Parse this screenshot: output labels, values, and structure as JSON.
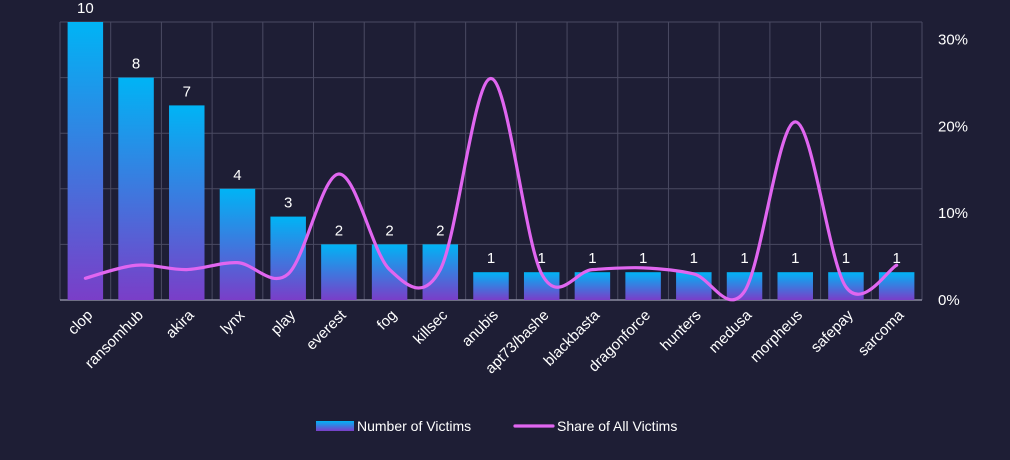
{
  "chart_data": {
    "type": "bar",
    "categories": [
      "clop",
      "ransomhub",
      "akira",
      "lynx",
      "play",
      "everest",
      "fog",
      "killsec",
      "anubis",
      "apt73/bashe",
      "blackbasta",
      "dragonforce",
      "hunters",
      "medusa",
      "morpheus",
      "safepay",
      "sarcoma"
    ],
    "series": [
      {
        "name": "Number of Victims",
        "type": "bar",
        "axis": "left",
        "values": [
          10,
          8,
          7,
          4,
          3,
          2,
          2,
          2,
          1,
          1,
          1,
          1,
          1,
          1,
          1,
          1,
          1
        ],
        "color_top": "#00b4f5",
        "color_bottom": "#7a3ec8"
      },
      {
        "name": "Share of All Victims",
        "type": "line",
        "axis": "right",
        "smooth": true,
        "values": [
          2.5,
          4,
          3.5,
          4.3,
          3,
          14.5,
          3.5,
          3.5,
          25.5,
          3,
          3.5,
          3.7,
          3,
          1,
          20.5,
          1.5,
          4
        ],
        "color": "#e066f0"
      }
    ],
    "left_axis": {
      "ylim": [
        0,
        10
      ],
      "grid_step": 2,
      "tick_labels_visible": false
    },
    "right_axis": {
      "ylim": [
        0,
        32
      ],
      "ticks": [
        0,
        10,
        20,
        30
      ],
      "tick_labels": [
        "0%",
        "10%",
        "20%",
        "30%"
      ]
    },
    "grid": true,
    "legend": {
      "placement": "bottom-center",
      "entries": [
        "Number of Victims",
        "Share of All Victims"
      ]
    },
    "colors": {
      "background": "#1e1e35",
      "grid": "#4a4a62",
      "text": "#ffffff"
    }
  }
}
